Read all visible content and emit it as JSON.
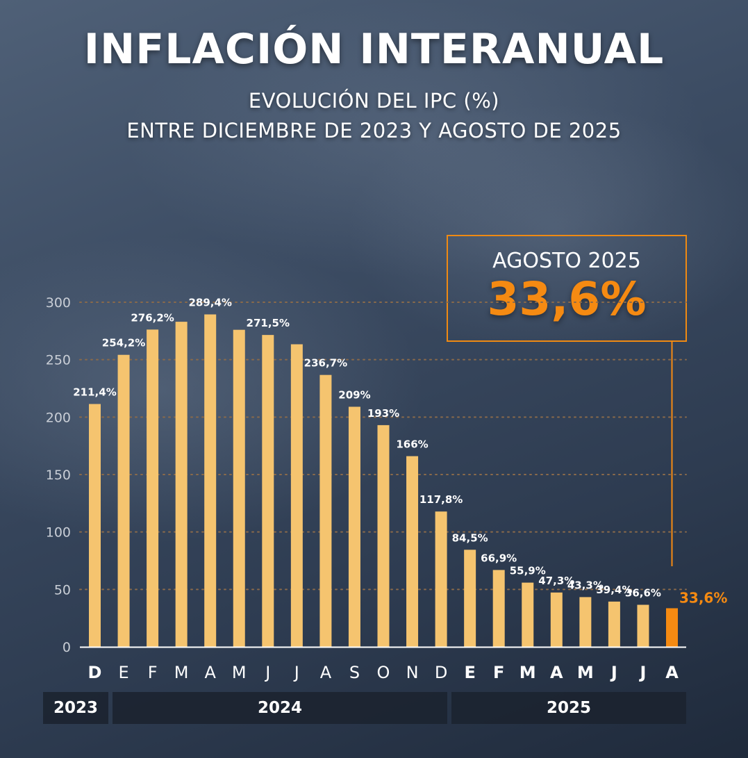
{
  "header": {
    "title": "INFLACIÓN INTERANUAL",
    "subtitle_line1": "EVOLUCIÓN DEL IPC (%)",
    "subtitle_line2": "ENTRE DICIEMBRE DE 2023 Y AGOSTO DE 2025"
  },
  "callout": {
    "label": "AGOSTO 2025",
    "value": "33,6%"
  },
  "years": [
    "2023",
    "2024",
    "2025"
  ],
  "colors": {
    "bar": "#f5c46f",
    "highlight": "#f58a12",
    "grid": "#8a6a4a",
    "axis": "#ffffff",
    "tick": "#c9ced6"
  },
  "chart_data": {
    "type": "bar",
    "title": "INFLACIÓN INTERANUAL",
    "ylim": [
      0,
      300
    ],
    "yticks": [
      0,
      50,
      100,
      150,
      200,
      250,
      300
    ],
    "grid": true,
    "categories": [
      "D",
      "E",
      "F",
      "M",
      "A",
      "M",
      "J",
      "J",
      "A",
      "S",
      "O",
      "N",
      "D",
      "E",
      "F",
      "M",
      "A",
      "M",
      "J",
      "J",
      "A"
    ],
    "bold_categories": [
      true,
      false,
      false,
      false,
      false,
      false,
      false,
      false,
      false,
      false,
      false,
      false,
      false,
      true,
      true,
      true,
      true,
      true,
      true,
      true,
      true
    ],
    "values": [
      211.4,
      254.2,
      276.2,
      283,
      289.4,
      276,
      271.5,
      263.4,
      236.7,
      209,
      193,
      166,
      117.8,
      84.5,
      66.9,
      55.9,
      47.3,
      43.3,
      39.4,
      36.6,
      33.6
    ],
    "labels": [
      "211,4%",
      "254,2%",
      "276,2%",
      "",
      "289,4%",
      "",
      "271,5%",
      "",
      "236,7%",
      "209%",
      "193%",
      "166%",
      "117,8%",
      "84,5%",
      "66,9%",
      "55,9%",
      "47,3%",
      "43,3%",
      "39,4%",
      "36,6%",
      "33,6%"
    ],
    "highlight_index": 20
  }
}
